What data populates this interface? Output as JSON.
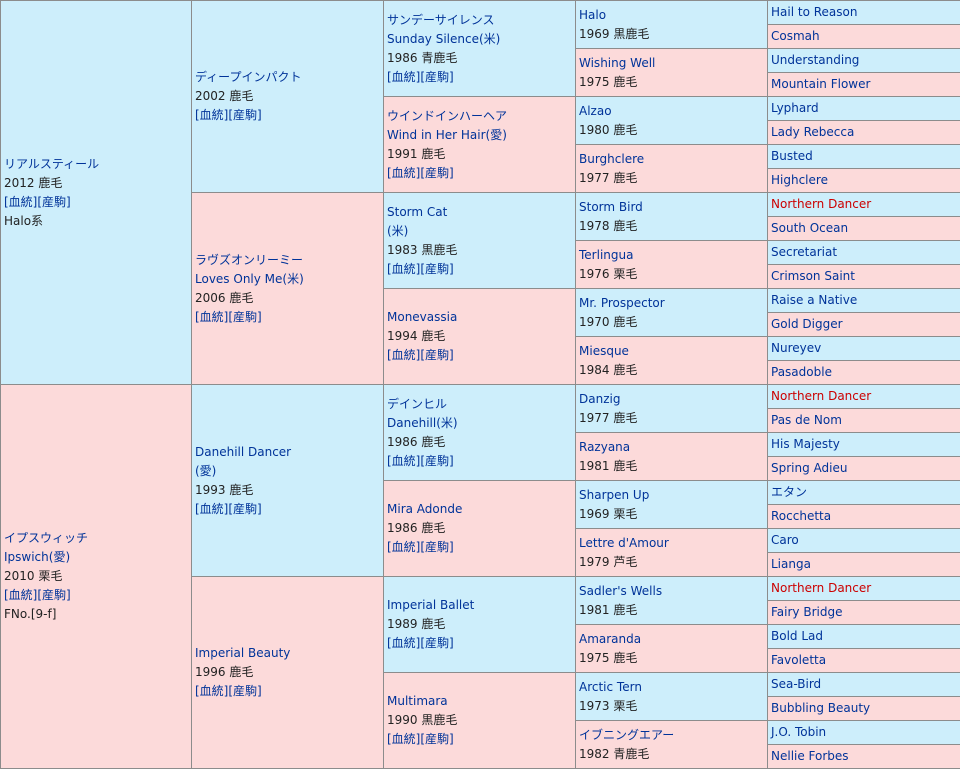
{
  "horse_sire": {
    "name": "リアルスティール",
    "birth": "2012 鹿毛",
    "links": "[血統][産駒]",
    "line": "Halo系"
  },
  "horse_dam": {
    "name": "イプスウィッチ",
    "alt": "Ipswich(愛)",
    "birth": "2010 栗毛",
    "links": "[血統][産駒]",
    "family": "FNo.[9-f]"
  },
  "g2": [
    {
      "name": "ディープインパクト",
      "birth": "2002 鹿毛",
      "links": "[血統][産駒]"
    },
    {
      "name": "ラヴズオンリーミー",
      "alt": "Loves Only Me(米)",
      "birth": "2006 鹿毛",
      "links": "[血統][産駒]"
    },
    {
      "name": "Danehill Dancer",
      "alt": "(愛)",
      "birth": "1993 鹿毛",
      "links": "[血統][産駒]"
    },
    {
      "name": "Imperial Beauty",
      "birth": "1996 鹿毛",
      "links": "[血統][産駒]"
    }
  ],
  "g3": [
    {
      "name": "サンデーサイレンス",
      "alt": "Sunday Silence(米)",
      "birth": "1986 青鹿毛",
      "links": "[血統][産駒]"
    },
    {
      "name": "ウインドインハーヘア",
      "alt": "Wind in Her Hair(愛)",
      "birth": "1991 鹿毛",
      "links": "[血統][産駒]"
    },
    {
      "name": "Storm Cat",
      "alt": "(米)",
      "birth": "1983 黒鹿毛",
      "links": "[血統][産駒]"
    },
    {
      "name": "Monevassia",
      "birth": "1994 鹿毛",
      "links": "[血統][産駒]"
    },
    {
      "name": "デインヒル",
      "alt": "Danehill(米)",
      "birth": "1986 鹿毛",
      "links": "[血統][産駒]"
    },
    {
      "name": "Mira Adonde",
      "birth": "1986 鹿毛",
      "links": "[血統][産駒]"
    },
    {
      "name": "Imperial Ballet",
      "birth": "1989 鹿毛",
      "links": "[血統][産駒]"
    },
    {
      "name": "Multimara",
      "birth": "1990 黒鹿毛",
      "links": "[血統][産駒]"
    }
  ],
  "g4": [
    {
      "name": "Halo",
      "birth": "1969 黒鹿毛"
    },
    {
      "name": "Wishing Well",
      "birth": "1975 鹿毛"
    },
    {
      "name": "Alzao",
      "birth": "1980 鹿毛"
    },
    {
      "name": "Burghclere",
      "birth": "1977 鹿毛"
    },
    {
      "name": "Storm Bird",
      "birth": "1978 鹿毛"
    },
    {
      "name": "Terlingua",
      "birth": "1976 栗毛"
    },
    {
      "name": "Mr. Prospector",
      "birth": "1970 鹿毛"
    },
    {
      "name": "Miesque",
      "birth": "1984 鹿毛"
    },
    {
      "name": "Danzig",
      "birth": "1977 鹿毛"
    },
    {
      "name": "Razyana",
      "birth": "1981 鹿毛"
    },
    {
      "name": "Sharpen Up",
      "birth": "1969 栗毛"
    },
    {
      "name": "Lettre d'Amour",
      "birth": "1979 芦毛"
    },
    {
      "name": "Sadler's Wells",
      "birth": "1981 鹿毛"
    },
    {
      "name": "Amaranda",
      "birth": "1975 鹿毛"
    },
    {
      "name": "Arctic Tern",
      "birth": "1973 栗毛"
    },
    {
      "name": "イブニングエアー",
      "birth": "1982 青鹿毛"
    }
  ],
  "g5": [
    "Hail to Reason",
    "Cosmah",
    "Understanding",
    "Mountain Flower",
    "Lyphard",
    "Lady Rebecca",
    "Busted",
    "Highclere",
    "Northern Dancer",
    "South Ocean",
    "Secretariat",
    "Crimson Saint",
    "Raise a Native",
    "Gold Digger",
    "Nureyev",
    "Pasadoble",
    "Northern Dancer",
    "Pas de Nom",
    "His Majesty",
    "Spring Adieu",
    "エタン",
    "Rocchetta",
    "Caro",
    "Lianga",
    "Northern Dancer",
    "Fairy Bridge",
    "Bold Lad",
    "Favoletta",
    "Sea-Bird",
    "Bubbling Beauty",
    "J.O. Tobin",
    "Nellie Forbes"
  ],
  "colors": {
    "male": "#cdeefb",
    "female": "#fcdada",
    "link": "#003399",
    "highlight": "#cc0000",
    "border": "#8c8c8c"
  }
}
